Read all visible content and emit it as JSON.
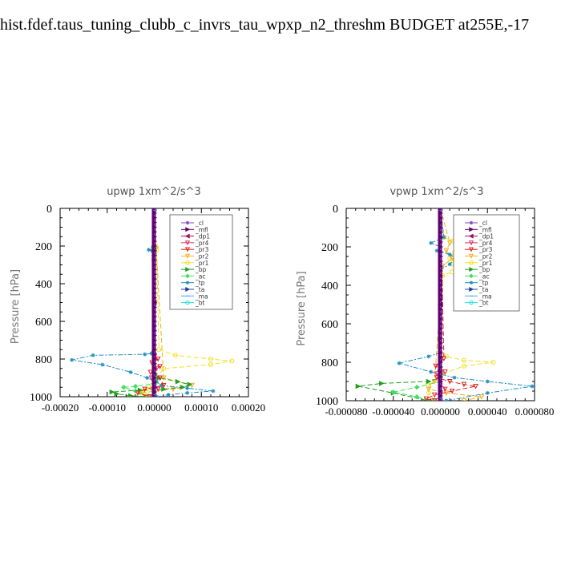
{
  "page_title": "hist.fdef.taus_tuning_clubb_c_invrs_tau_wpxp_n2_threshm  BUDGET at255E,-17",
  "legend_entries": [
    {
      "label": "_cl",
      "color": "#8040c0",
      "marker": "star"
    },
    {
      "label": "_mfl",
      "color": "#600070",
      "marker": "tri-right"
    },
    {
      "label": "_dp1",
      "color": "#a01060",
      "marker": "tri-left"
    },
    {
      "label": "_pr4",
      "color": "#e03060",
      "marker": "tri-down"
    },
    {
      "label": "_pr3",
      "color": "#e02020",
      "marker": "tri-down"
    },
    {
      "label": "_pr2",
      "color": "#f0b020",
      "marker": "tri-down"
    },
    {
      "label": "_pr1",
      "color": "#f0e020",
      "marker": "circle"
    },
    {
      "label": "_bp",
      "color": "#20a020",
      "marker": "tri-right"
    },
    {
      "label": "_ac",
      "color": "#40e060",
      "marker": "diamond"
    },
    {
      "label": "_tp",
      "color": "#2090c0",
      "marker": "star"
    },
    {
      "label": "_ta",
      "color": "#2040a0",
      "marker": "tri-right"
    },
    {
      "label": "_ma",
      "color": "#40b0e0",
      "marker": "dash"
    },
    {
      "label": "_bt",
      "color": "#20e0e0",
      "marker": "circle"
    }
  ],
  "chart_data": [
    {
      "type": "line",
      "title": "upwp   1xm^2/s^3",
      "ylabel": "Pressure [hPa]",
      "xlabel": "",
      "xlim": [
        -0.0002,
        0.0002
      ],
      "ylim": [
        1000,
        0
      ],
      "xticks": [
        "-0.00020",
        "-0.00010",
        "0.00000",
        "0.00010",
        "0.00020"
      ],
      "xtick_values": [
        -0.0002,
        -0.0001,
        0,
        0.0001,
        0.0002
      ],
      "yticks": [
        "0",
        "200",
        "400",
        "600",
        "800",
        "1000"
      ],
      "ytick_values": [
        0,
        200,
        400,
        600,
        800,
        1000
      ],
      "legend_position": "top-right",
      "series": [
        {
          "name": "_pr1",
          "color": "#f0e020",
          "dash": "6,3",
          "marker": "circle",
          "x": [
            0,
            3e-06,
            -2e-06,
            5e-06,
            1e-05,
            4.5e-05,
            0.00012,
            0.000165,
            0.00012,
            2e-05,
            5e-06,
            -5e-06,
            -1.5e-05,
            -2.5e-05,
            -1.5e-05,
            -5e-06
          ],
          "y": [
            0,
            200,
            210,
            220,
            750,
            780,
            800,
            810,
            830,
            850,
            900,
            940,
            960,
            975,
            990,
            1000
          ]
        },
        {
          "name": "_pr2",
          "color": "#f0b020",
          "dash": "6,3",
          "marker": "tri-down",
          "x": [
            0,
            4e-06,
            2e-05,
            8e-05,
            4e-05,
            -3e-05,
            -2e-05
          ],
          "y": [
            0,
            215,
            900,
            940,
            960,
            980,
            1000
          ]
        },
        {
          "name": "_tp",
          "color": "#2090c0",
          "dash": "6,2,2,2",
          "marker": "star",
          "x": [
            0,
            0,
            -3e-06,
            0,
            -1.2e-05,
            -5e-06,
            -2e-06,
            -6e-06,
            -2e-05,
            -0.00013,
            -0.000175,
            -0.00011,
            -5e-05,
            -1.5e-05,
            5e-06,
            1.5e-05,
            7e-05,
            0.000125,
            7e-05,
            3e-05,
            5e-06
          ],
          "y": [
            0,
            195,
            205,
            215,
            220,
            225,
            760,
            770,
            775,
            780,
            805,
            830,
            870,
            900,
            920,
            940,
            955,
            970,
            980,
            990,
            1000
          ]
        },
        {
          "name": "_bp",
          "color": "#20a020",
          "dash": "6,3",
          "marker": "tri-right",
          "x": [
            0,
            2e-06,
            1e-05,
            5e-05,
            7.5e-05,
            6e-05,
            2e-05,
            -3e-05,
            -9e-05,
            -8e-05,
            -5e-05,
            -1e-05
          ],
          "y": [
            0,
            880,
            900,
            920,
            935,
            950,
            960,
            965,
            975,
            985,
            995,
            1000
          ]
        },
        {
          "name": "_ac",
          "color": "#40e060",
          "dash": "6,3",
          "marker": "diamond",
          "x": [
            0,
            2e-06,
            -4e-05,
            -6.5e-05,
            -4e-05,
            -1e-05
          ],
          "y": [
            0,
            930,
            945,
            950,
            970,
            1000
          ]
        },
        {
          "name": "_pr3",
          "color": "#e02020",
          "dash": "6,3",
          "marker": "tri-down",
          "x": [
            0,
            0,
            8e-06,
            -5e-06,
            1.2e-05,
            -8e-06,
            1.2e-05,
            2e-05,
            -2e-05,
            -3.5e-05,
            -1e-05
          ],
          "y": [
            0,
            780,
            800,
            820,
            840,
            870,
            900,
            940,
            960,
            980,
            1000
          ]
        },
        {
          "name": "_pr4",
          "color": "#e03060",
          "dash": "6,3",
          "marker": "tri-down",
          "x": [
            0,
            0,
            5e-06,
            -6e-06,
            8e-06,
            -4e-06
          ],
          "y": [
            0,
            790,
            850,
            900,
            960,
            1000
          ]
        },
        {
          "name": "_dp1",
          "color": "#a01060",
          "dash": "",
          "marker": "tri-left",
          "x": [
            0,
            0,
            0
          ],
          "y": [
            0,
            500,
            1000
          ]
        },
        {
          "name": "_mfl",
          "color": "#600070",
          "dash": "",
          "marker": "tri-right",
          "x": [
            0,
            0,
            0
          ],
          "y": [
            0,
            500,
            1000
          ]
        },
        {
          "name": "_ta",
          "color": "#2040a0",
          "dash": "6,3",
          "marker": "tri-right",
          "x": [
            0,
            0
          ],
          "y": [
            0,
            1000
          ]
        },
        {
          "name": "_ma",
          "color": "#40b0e0",
          "dash": "8,3",
          "marker": "dash",
          "x": [
            0,
            0
          ],
          "y": [
            0,
            1000
          ]
        },
        {
          "name": "_bt",
          "color": "#20e0e0",
          "dash": "6,3",
          "marker": "circle",
          "x": [
            0,
            0
          ],
          "y": [
            0,
            1000
          ]
        },
        {
          "name": "_cl",
          "color": "#8040c0",
          "dash": "",
          "marker": "star",
          "x": [
            0,
            0
          ],
          "y": [
            0,
            1000
          ]
        }
      ]
    },
    {
      "type": "line",
      "title": "vpwp   1xm^2/s^3",
      "ylabel": "Pressure [hPa]",
      "xlabel": "",
      "xlim": [
        -8e-05,
        8e-05
      ],
      "ylim": [
        1000,
        0
      ],
      "xticks": [
        "-0.000080",
        "-0.000040",
        "0.000000",
        "0.000040",
        "0.000080"
      ],
      "xtick_values": [
        -8e-05,
        -4e-05,
        0,
        4e-05,
        8e-05
      ],
      "yticks": [
        "0",
        "200",
        "400",
        "600",
        "800",
        "1000"
      ],
      "ytick_values": [
        0,
        200,
        400,
        600,
        800,
        1000
      ],
      "legend_position": "top-right",
      "series": [
        {
          "name": "_pr1",
          "color": "#f0e020",
          "dash": "6,3",
          "marker": "circle",
          "x": [
            0,
            3e-06,
            1e-05,
            1.8e-05,
            1.2e-05,
            8e-06,
            1e-05,
            1.8e-05,
            1e-05,
            2e-06,
            0,
            5e-06,
            2e-05,
            4.5e-05,
            2e-05,
            2e-06,
            -1e-05,
            -1e-05,
            -5e-06
          ],
          "y": [
            0,
            150,
            170,
            200,
            230,
            260,
            290,
            310,
            330,
            350,
            750,
            770,
            790,
            800,
            820,
            860,
            920,
            960,
            1000
          ]
        },
        {
          "name": "_pr2",
          "color": "#f0b020",
          "dash": "6,3",
          "marker": "tri-down",
          "x": [
            0,
            8e-06,
            5e-06,
            1e-05,
            2e-06,
            -5e-06,
            -1e-05,
            5e-06,
            3.5e-05,
            2e-05
          ],
          "y": [
            0,
            180,
            220,
            260,
            300,
            900,
            940,
            960,
            980,
            1000
          ]
        },
        {
          "name": "_tp",
          "color": "#2090c0",
          "dash": "6,2,2,2",
          "marker": "star",
          "x": [
            0,
            3e-06,
            -8e-06,
            0,
            -3e-06,
            8e-06,
            1.4e-05,
            8e-06,
            0,
            0,
            -1e-05,
            -3.5e-05,
            -8e-06,
            1.2e-05,
            4e-05,
            7.8e-05,
            4e-05,
            5e-06
          ],
          "y": [
            0,
            150,
            180,
            200,
            220,
            240,
            260,
            290,
            320,
            750,
            770,
            805,
            850,
            880,
            900,
            925,
            960,
            1000
          ]
        },
        {
          "name": "_bp",
          "color": "#20a020",
          "dash": "6,3",
          "marker": "tri-right",
          "x": [
            0,
            0,
            -1e-05,
            -5e-05,
            -7e-05,
            -4e-05,
            -1e-05
          ],
          "y": [
            0,
            880,
            900,
            910,
            925,
            960,
            1000
          ]
        },
        {
          "name": "_ac",
          "color": "#40e060",
          "dash": "6,3",
          "marker": "diamond",
          "x": [
            0,
            0,
            -2e-05,
            -4e-05,
            -2e-05,
            -5e-06
          ],
          "y": [
            0,
            900,
            930,
            955,
            980,
            1000
          ]
        },
        {
          "name": "_pr3",
          "color": "#e02020",
          "dash": "6,3",
          "marker": "tri-down",
          "x": [
            0,
            3e-06,
            -4e-06,
            4e-06,
            -3e-06,
            8e-06,
            2e-05,
            3e-05,
            1e-05,
            -5e-06,
            -1.2e-05,
            -5e-06
          ],
          "y": [
            0,
            780,
            820,
            850,
            880,
            900,
            915,
            925,
            950,
            970,
            990,
            1000
          ]
        },
        {
          "name": "_pr4",
          "color": "#e03060",
          "dash": "6,3",
          "marker": "tri-down",
          "x": [
            0,
            0,
            -3e-06,
            4e-06,
            -2e-06
          ],
          "y": [
            0,
            800,
            860,
            940,
            1000
          ]
        },
        {
          "name": "_dp1",
          "color": "#a01060",
          "dash": "",
          "marker": "tri-left",
          "x": [
            0,
            0,
            0
          ],
          "y": [
            0,
            500,
            1000
          ]
        },
        {
          "name": "_mfl",
          "color": "#600070",
          "dash": "",
          "marker": "tri-right",
          "x": [
            0,
            0,
            0
          ],
          "y": [
            0,
            500,
            1000
          ]
        },
        {
          "name": "_ta",
          "color": "#2040a0",
          "dash": "6,3",
          "marker": "tri-right",
          "x": [
            0,
            0
          ],
          "y": [
            0,
            1000
          ]
        },
        {
          "name": "_ma",
          "color": "#40b0e0",
          "dash": "8,3",
          "marker": "dash",
          "x": [
            0,
            0
          ],
          "y": [
            0,
            1000
          ]
        },
        {
          "name": "_bt",
          "color": "#20e0e0",
          "dash": "6,3",
          "marker": "circle",
          "x": [
            0,
            0
          ],
          "y": [
            0,
            1000
          ]
        },
        {
          "name": "_cl",
          "color": "#8040c0",
          "dash": "",
          "marker": "star",
          "x": [
            0,
            0
          ],
          "y": [
            0,
            1000
          ]
        }
      ]
    }
  ]
}
